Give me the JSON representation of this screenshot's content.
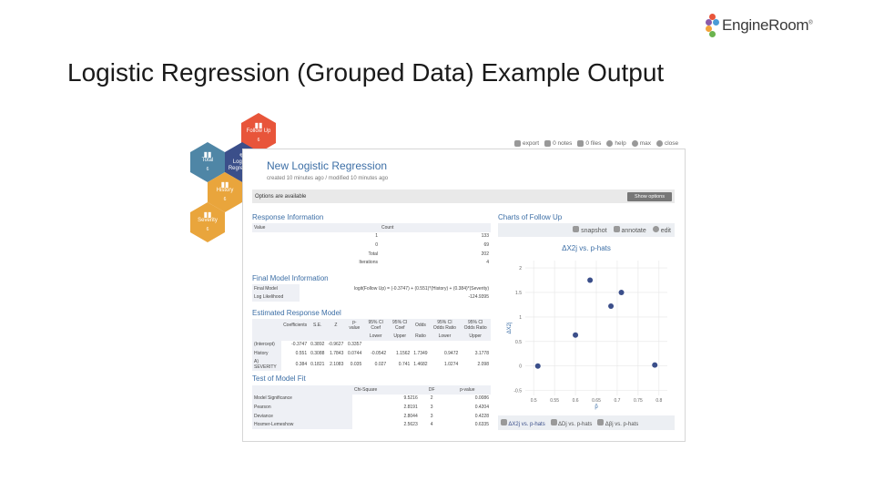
{
  "brand": {
    "name": "EngineRoom",
    "trademark": "®",
    "dot_colors": [
      "#e8553a",
      "#8a5aa8",
      "#4a9bd6",
      "#f2a23a",
      "#6bb34e"
    ]
  },
  "slide": {
    "title": "Logistic Regression (Grouped Data) Example Output"
  },
  "hex_nav": [
    {
      "label": "Follow Up",
      "count": "6",
      "color": "#e8553a",
      "icon": "bar-chart-icon"
    },
    {
      "label": "Total",
      "count": "6",
      "color": "#4f86a6",
      "icon": "bar-chart-icon"
    },
    {
      "label": "Logistic Regression",
      "count": "",
      "color": "#3b4f8a",
      "icon": "wrench-icon"
    },
    {
      "label": "History",
      "count": "6",
      "color": "#e9a53c",
      "icon": "bar-chart-icon"
    },
    {
      "label": "Severity",
      "count": "6",
      "color": "#e9a53c",
      "icon": "bar-chart-icon"
    }
  ],
  "toolbar": [
    {
      "label": "export",
      "icon": "export-icon"
    },
    {
      "label": "0 notes",
      "icon": "notes-icon"
    },
    {
      "label": "0 files",
      "icon": "folder-icon"
    },
    {
      "label": "help",
      "icon": "help-icon"
    },
    {
      "label": "max",
      "icon": "maximize-icon"
    },
    {
      "label": "close",
      "icon": "close-icon"
    }
  ],
  "panel": {
    "title": "New Logistic Regression",
    "meta": "created 10 minutes ago / modified 10 minutes ago",
    "options_text": "Options are available",
    "show_options": "Show options"
  },
  "response_info": {
    "heading": "Response Information",
    "headers": [
      "Value",
      "Count"
    ],
    "rows": [
      [
        "1",
        "133"
      ],
      [
        "0",
        "69"
      ],
      [
        "Total",
        "202"
      ],
      [
        "Iterations",
        "4"
      ]
    ]
  },
  "final_model": {
    "heading": "Final Model Information",
    "rows": [
      [
        "Final Model",
        "logit(Follow Up) = (-0.3747) + (0.551)*(History) + (0.384)*(Severity)"
      ],
      [
        "Log Likelihood",
        "-124.9395"
      ]
    ]
  },
  "estimated": {
    "heading": "Estimated Response Model",
    "headers": [
      "",
      "Coefficients",
      "S.E.",
      "Z",
      "p-value",
      "95% CI Coef",
      "95% CI Coef",
      "Odds",
      "95% CI Odds Ratio",
      "95% CI Odds Ratio"
    ],
    "subheaders": [
      "",
      "",
      "",
      "",
      "",
      "Lower",
      "Upper",
      "Ratio",
      "Lower",
      "Upper"
    ],
    "rows": [
      [
        "(Intercept)",
        "-0.3747",
        "0.3892",
        "-0.9627",
        "0.3357",
        "",
        "",
        "",
        "",
        ""
      ],
      [
        "History",
        "0.551",
        "0.3088",
        "1.7843",
        "0.0744",
        "-0.0542",
        "1.1562",
        "1.7349",
        "0.9472",
        "3.1778"
      ],
      [
        "A) SEVERITY",
        "0.384",
        "0.1821",
        "2.1083",
        "0.035",
        "0.027",
        "0.741",
        "1.4682",
        "1.0274",
        "2.098"
      ]
    ]
  },
  "model_fit": {
    "heading": "Test of Model Fit",
    "headers": [
      "",
      "Chi-Square",
      "DF",
      "p-value"
    ],
    "rows": [
      [
        "Model Significance",
        "9.5216",
        "2",
        "0.0086"
      ],
      [
        "Pearson",
        "2.8191",
        "3",
        "0.4204"
      ],
      [
        "Deviance",
        "2.8044",
        "3",
        "0.4228"
      ],
      [
        "Hosmer-Lemeshow",
        "2.5623",
        "4",
        "0.6335"
      ]
    ]
  },
  "chart_panel": {
    "heading": "Charts of Follow Up",
    "tools": [
      {
        "label": "snapshot",
        "icon": "camera-icon"
      },
      {
        "label": "annotate",
        "icon": "pencil-icon"
      },
      {
        "label": "edit",
        "icon": "gear-icon"
      }
    ],
    "tabs": [
      "ΔX2j vs. p-hats",
      "ΔDj vs. p-hats",
      "Δβj vs. p-hats"
    ]
  },
  "chart_data": {
    "type": "scatter",
    "title": "ΔX2j  vs. p-hats",
    "xlabel": "p̂",
    "ylabel": "ΔX2j",
    "xlim": [
      0.48,
      0.82
    ],
    "ylim": [
      -0.6,
      2.15
    ],
    "xticks": [
      "0.5",
      "0.55",
      "0.6",
      "0.65",
      "0.7",
      "0.75",
      "0.8"
    ],
    "yticks": [
      "2",
      "1.5",
      "1",
      "0.5",
      "0",
      "-0.5"
    ],
    "color": "#3b4f8a",
    "x": [
      0.51,
      0.6,
      0.635,
      0.685,
      0.71,
      0.79
    ],
    "y": [
      0.0,
      0.63,
      1.75,
      1.22,
      1.5,
      0.02
    ]
  }
}
